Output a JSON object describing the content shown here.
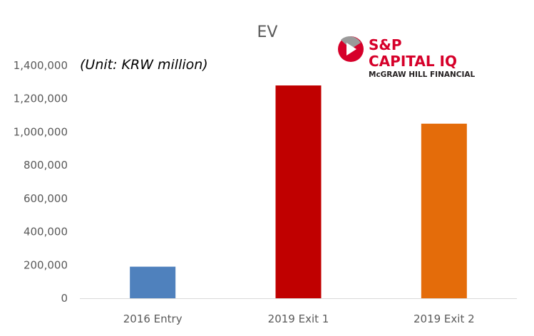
{
  "chart_data": {
    "type": "bar",
    "title": "EV",
    "unit_note": "(Unit: KRW million)",
    "categories": [
      "2016 Entry",
      "2019 Exit 1",
      "2019 Exit 2"
    ],
    "values": [
      190000,
      1280000,
      1050000
    ],
    "colors": [
      "#4f81bd",
      "#c00000",
      "#e46c0a"
    ],
    "ylim": [
      0,
      1400000
    ],
    "ytick_labels": [
      "0",
      "200,000",
      "400,000",
      "600,000",
      "800,000",
      "1,000,000",
      "1,200,000",
      "1,400,000"
    ],
    "ytick_values": [
      0,
      200000,
      400000,
      600000,
      800000,
      1000000,
      1200000,
      1400000
    ],
    "grid": false,
    "axis_color": "#d9d9d9"
  },
  "logo": {
    "line1": "S&P",
    "line2": "CAPITAL IQ",
    "line3": "McGRAW HILL FINANCIAL",
    "brand_color": "#d6002a"
  }
}
